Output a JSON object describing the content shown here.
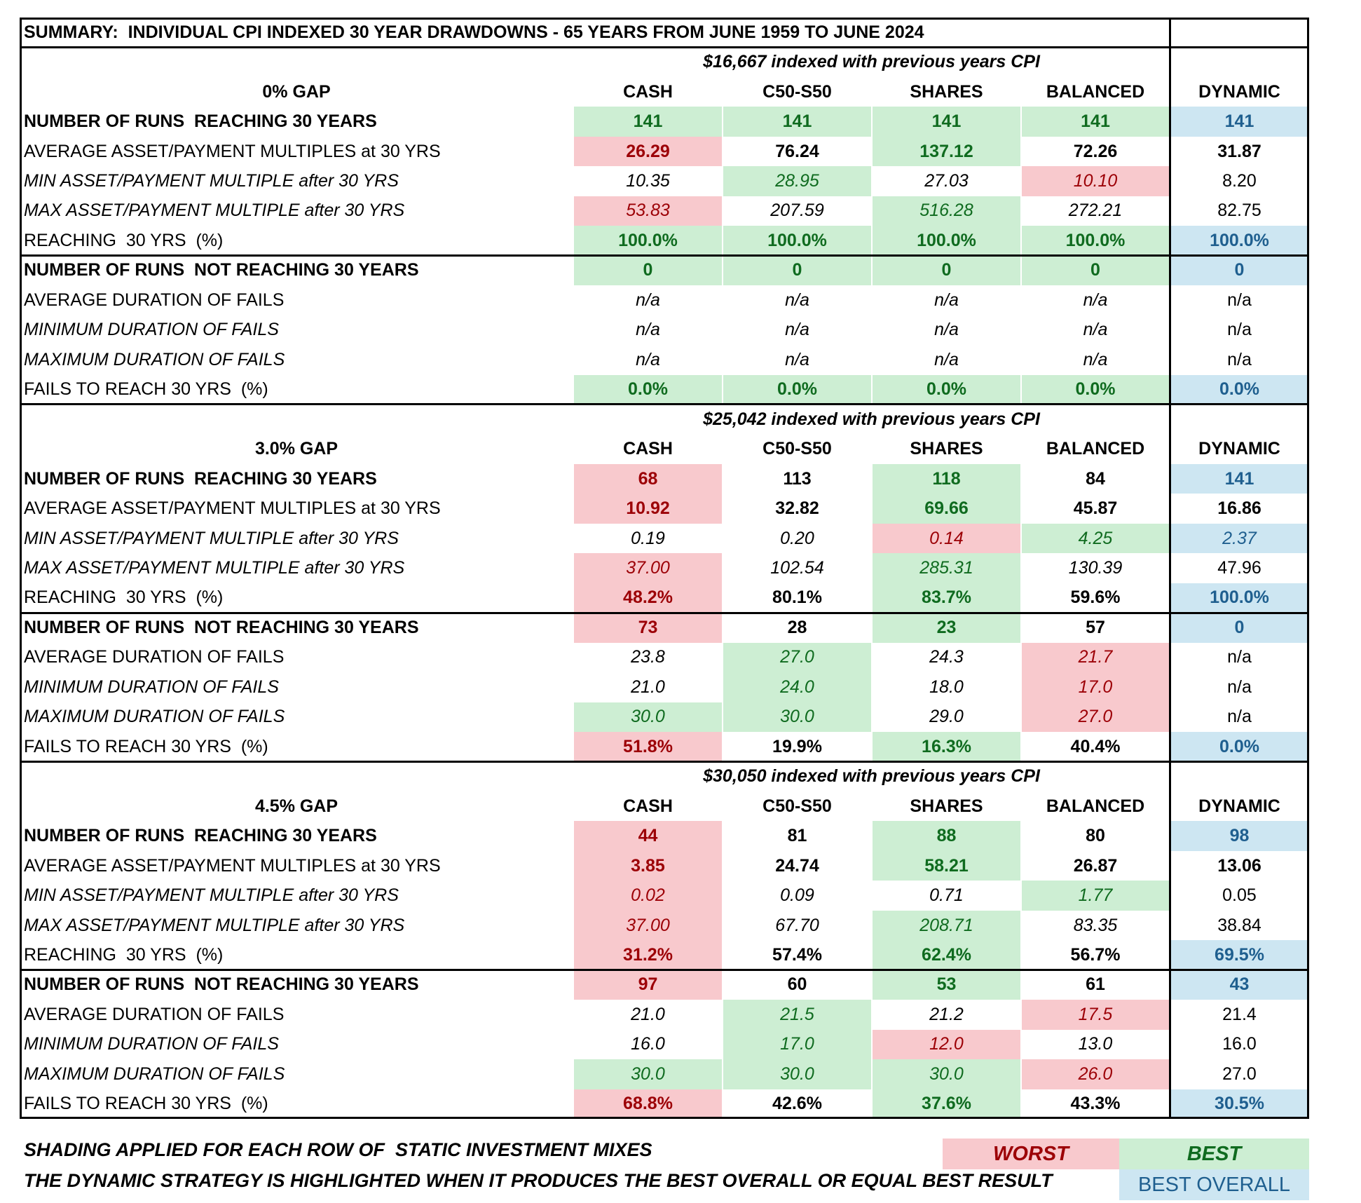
{
  "title": "SUMMARY:  INDIVIDUAL CPI INDEXED 30 YEAR DRAWDOWNS - 65 YEARS FROM JUNE 1959 TO JUNE 2024",
  "columns": [
    "CASH",
    "C50-S50",
    "SHARES",
    "BALANCED",
    "DYNAMIC"
  ],
  "sections": [
    {
      "subtitle": "$16,667 indexed with previous years CPI",
      "gap": "0% GAP",
      "rows": [
        {
          "label": "NUMBER OF RUNS  REACHING 30 YEARS",
          "values": [
            "141",
            "141",
            "141",
            "141",
            "141"
          ],
          "shading": [
            "best",
            "best",
            "best",
            "best",
            "best-overall"
          ]
        },
        {
          "label": "AVERAGE ASSET/PAYMENT MULTIPLES at 30 YRS",
          "values": [
            "26.29",
            "76.24",
            "137.12",
            "72.26",
            "31.87"
          ],
          "shading": [
            "worst",
            null,
            "best",
            null,
            null
          ]
        },
        {
          "label": "MIN ASSET/PAYMENT MULTIPLE after 30 YRS",
          "values": [
            "10.35",
            "28.95",
            "27.03",
            "10.10",
            "8.20"
          ],
          "shading": [
            null,
            "best",
            null,
            "worst",
            null
          ]
        },
        {
          "label": "MAX ASSET/PAYMENT MULTIPLE after 30 YRS",
          "values": [
            "53.83",
            "207.59",
            "516.28",
            "272.21",
            "82.75"
          ],
          "shading": [
            "worst",
            null,
            "best",
            null,
            null
          ]
        },
        {
          "label": "REACHING  30 YRS  (%)",
          "values": [
            "100.0%",
            "100.0%",
            "100.0%",
            "100.0%",
            "100.0%"
          ],
          "shading": [
            "best",
            "best",
            "best",
            "best",
            "best-overall"
          ]
        },
        {
          "label": "NUMBER OF RUNS  NOT REACHING 30 YEARS",
          "values": [
            "0",
            "0",
            "0",
            "0",
            "0"
          ],
          "shading": [
            "best",
            "best",
            "best",
            "best",
            "best-overall"
          ]
        },
        {
          "label": "AVERAGE DURATION OF FAILS",
          "values": [
            "n/a",
            "n/a",
            "n/a",
            "n/a",
            "n/a"
          ],
          "shading": [
            null,
            null,
            null,
            null,
            null
          ]
        },
        {
          "label": "MINIMUM DURATION OF FAILS",
          "values": [
            "n/a",
            "n/a",
            "n/a",
            "n/a",
            "n/a"
          ],
          "shading": [
            null,
            null,
            null,
            null,
            null
          ]
        },
        {
          "label": "MAXIMUM DURATION OF FAILS",
          "values": [
            "n/a",
            "n/a",
            "n/a",
            "n/a",
            "n/a"
          ],
          "shading": [
            null,
            null,
            null,
            null,
            null
          ]
        },
        {
          "label": "FAILS TO REACH 30 YRS  (%)",
          "values": [
            "0.0%",
            "0.0%",
            "0.0%",
            "0.0%",
            "0.0%"
          ],
          "shading": [
            "best",
            "best",
            "best",
            "best",
            "best-overall"
          ]
        }
      ]
    },
    {
      "subtitle": "$25,042 indexed with previous years CPI",
      "gap": "3.0% GAP",
      "rows": [
        {
          "label": "NUMBER OF RUNS  REACHING 30 YEARS",
          "values": [
            "68",
            "113",
            "118",
            "84",
            "141"
          ],
          "shading": [
            "worst",
            null,
            "best",
            null,
            "best-overall"
          ]
        },
        {
          "label": "AVERAGE ASSET/PAYMENT MULTIPLES at 30 YRS",
          "values": [
            "10.92",
            "32.82",
            "69.66",
            "45.87",
            "16.86"
          ],
          "shading": [
            "worst",
            null,
            "best",
            null,
            null
          ]
        },
        {
          "label": "MIN ASSET/PAYMENT MULTIPLE after 30 YRS",
          "values": [
            "0.19",
            "0.20",
            "0.14",
            "4.25",
            "2.37"
          ],
          "shading": [
            null,
            null,
            "worst",
            "best",
            "best-overall"
          ]
        },
        {
          "label": "MAX ASSET/PAYMENT MULTIPLE after 30 YRS",
          "values": [
            "37.00",
            "102.54",
            "285.31",
            "130.39",
            "47.96"
          ],
          "shading": [
            "worst",
            null,
            "best",
            null,
            null
          ]
        },
        {
          "label": "REACHING  30 YRS  (%)",
          "values": [
            "48.2%",
            "80.1%",
            "83.7%",
            "59.6%",
            "100.0%"
          ],
          "shading": [
            "worst",
            null,
            "best",
            null,
            "best-overall"
          ]
        },
        {
          "label": "NUMBER OF RUNS  NOT REACHING 30 YEARS",
          "values": [
            "73",
            "28",
            "23",
            "57",
            "0"
          ],
          "shading": [
            "worst",
            null,
            "best",
            null,
            "best-overall"
          ]
        },
        {
          "label": "AVERAGE DURATION OF FAILS",
          "values": [
            "23.8",
            "27.0",
            "24.3",
            "21.7",
            "n/a"
          ],
          "shading": [
            null,
            "best",
            null,
            "worst",
            null
          ]
        },
        {
          "label": "MINIMUM DURATION OF FAILS",
          "values": [
            "21.0",
            "24.0",
            "18.0",
            "17.0",
            "n/a"
          ],
          "shading": [
            null,
            "best",
            null,
            "worst",
            null
          ]
        },
        {
          "label": "MAXIMUM DURATION OF FAILS",
          "values": [
            "30.0",
            "30.0",
            "29.0",
            "27.0",
            "n/a"
          ],
          "shading": [
            "best",
            "best",
            null,
            "worst",
            null
          ]
        },
        {
          "label": "FAILS TO REACH 30 YRS  (%)",
          "values": [
            "51.8%",
            "19.9%",
            "16.3%",
            "40.4%",
            "0.0%"
          ],
          "shading": [
            "worst",
            null,
            "best",
            null,
            "best-overall"
          ]
        }
      ]
    },
    {
      "subtitle": "$30,050 indexed with previous years CPI",
      "gap": "4.5% GAP",
      "rows": [
        {
          "label": "NUMBER OF RUNS  REACHING 30 YEARS",
          "values": [
            "44",
            "81",
            "88",
            "80",
            "98"
          ],
          "shading": [
            "worst",
            null,
            "best",
            null,
            "best-overall"
          ]
        },
        {
          "label": "AVERAGE ASSET/PAYMENT MULTIPLES at 30 YRS",
          "values": [
            "3.85",
            "24.74",
            "58.21",
            "26.87",
            "13.06"
          ],
          "shading": [
            "worst",
            null,
            "best",
            null,
            null
          ]
        },
        {
          "label": "MIN ASSET/PAYMENT MULTIPLE after 30 YRS",
          "values": [
            "0.02",
            "0.09",
            "0.71",
            "1.77",
            "0.05"
          ],
          "shading": [
            "worst",
            null,
            null,
            "best",
            null
          ]
        },
        {
          "label": "MAX ASSET/PAYMENT MULTIPLE after 30 YRS",
          "values": [
            "37.00",
            "67.70",
            "208.71",
            "83.35",
            "38.84"
          ],
          "shading": [
            "worst",
            null,
            "best",
            null,
            null
          ]
        },
        {
          "label": "REACHING  30 YRS  (%)",
          "values": [
            "31.2%",
            "57.4%",
            "62.4%",
            "56.7%",
            "69.5%"
          ],
          "shading": [
            "worst",
            null,
            "best",
            null,
            "best-overall"
          ]
        },
        {
          "label": "NUMBER OF RUNS  NOT REACHING 30 YEARS",
          "values": [
            "97",
            "60",
            "53",
            "61",
            "43"
          ],
          "shading": [
            "worst",
            null,
            "best",
            null,
            "best-overall"
          ]
        },
        {
          "label": "AVERAGE DURATION OF FAILS",
          "values": [
            "21.0",
            "21.5",
            "21.2",
            "17.5",
            "21.4"
          ],
          "shading": [
            null,
            "best",
            null,
            "worst",
            null
          ]
        },
        {
          "label": "MINIMUM DURATION OF FAILS",
          "values": [
            "16.0",
            "17.0",
            "12.0",
            "13.0",
            "16.0"
          ],
          "shading": [
            null,
            "best",
            "worst",
            null,
            null
          ]
        },
        {
          "label": "MAXIMUM DURATION OF FAILS",
          "values": [
            "30.0",
            "30.0",
            "30.0",
            "26.0",
            "27.0"
          ],
          "shading": [
            "best",
            "best",
            "best",
            "worst",
            null
          ]
        },
        {
          "label": "FAILS TO REACH 30 YRS  (%)",
          "values": [
            "68.8%",
            "42.6%",
            "37.6%",
            "43.3%",
            "30.5%"
          ],
          "shading": [
            "worst",
            null,
            "best",
            null,
            "best-overall"
          ]
        }
      ]
    }
  ],
  "legend": {
    "notes": [
      "SHADING APPLIED FOR EACH ROW OF  STATIC INVESTMENT MIXES",
      "THE DYNAMIC STRATEGY IS HIGHLIGHTED WHEN IT PRODUCES THE BEST OVERALL OR EQUAL BEST RESULT"
    ],
    "keys": [
      {
        "label": "WORST",
        "shading": "worst"
      },
      {
        "label": "BEST",
        "shading": "best"
      },
      {
        "label": "BEST OVERALL",
        "shading": "best-overall"
      }
    ]
  }
}
